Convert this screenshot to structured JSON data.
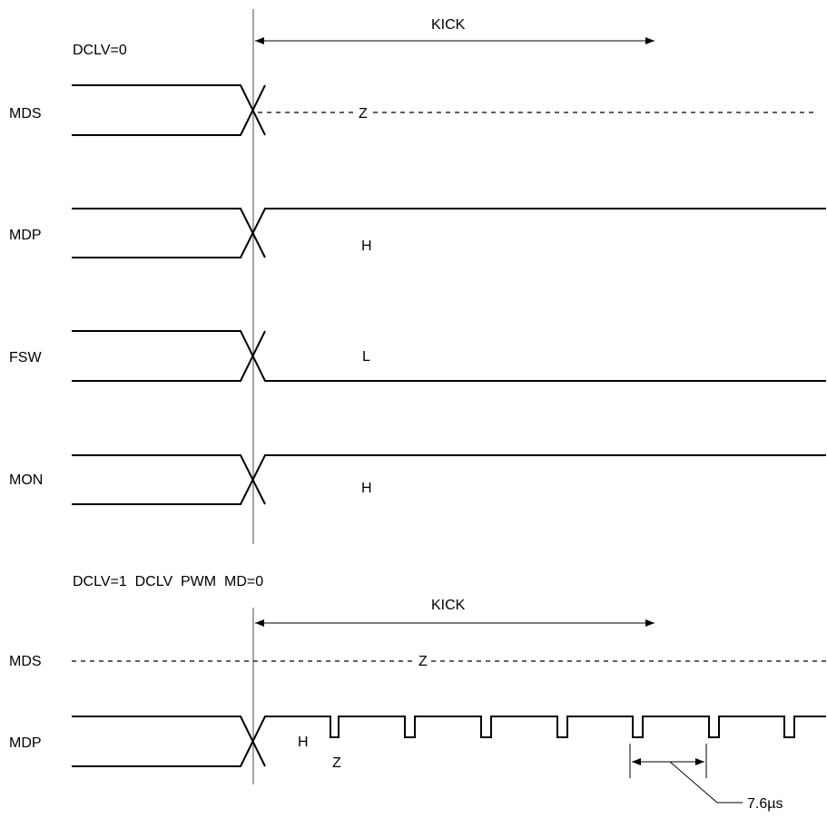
{
  "section1": {
    "condition": "DCLV=0",
    "kick_label": "KICK",
    "signals": [
      {
        "name": "MDS",
        "state": "Z"
      },
      {
        "name": "MDP",
        "state": "H"
      },
      {
        "name": "FSW",
        "state": "L"
      },
      {
        "name": "MON",
        "state": "H"
      }
    ]
  },
  "section2": {
    "condition": "DCLV=1  DCLV  PWM  MD=0",
    "kick_label": "KICK",
    "signals": [
      {
        "name": "MDS",
        "state": "Z"
      },
      {
        "name": "MDP",
        "state": "H",
        "pulse_state": "Z"
      }
    ],
    "period_label": "7.6µs"
  },
  "colors": {
    "line": "#000000",
    "marker": "#888888",
    "background": "#ffffff"
  }
}
